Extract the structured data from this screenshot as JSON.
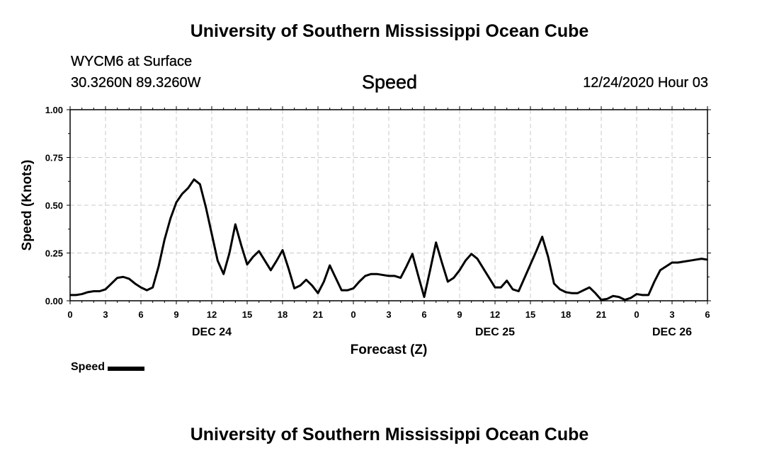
{
  "header": {
    "top_title": "University of Southern Mississippi Ocean Cube",
    "station": "WYCM6 at Surface",
    "coords": "30.3260N 89.3260W",
    "variable": "Speed",
    "date": "12/24/2020 Hour 03",
    "bottom_title": "University of Southern Mississippi Ocean Cube"
  },
  "legend": {
    "label": "Speed",
    "color": "#000000"
  },
  "chart_data": {
    "type": "line",
    "title": "Speed",
    "xlabel": "Forecast (Z)",
    "ylabel": "Speed (Knots)",
    "xlim": [
      0,
      54
    ],
    "ylim": [
      0,
      1
    ],
    "grid": true,
    "y_ticks": [
      "0.00",
      "0.25",
      "0.50",
      "0.75",
      "1.00"
    ],
    "x_ticks": [
      "0",
      "3",
      "6",
      "9",
      "12",
      "15",
      "18",
      "21",
      "0",
      "3",
      "6",
      "9",
      "12",
      "15",
      "18",
      "21",
      "0",
      "3",
      "6"
    ],
    "day_labels": [
      {
        "label": "DEC 24",
        "hour": 12
      },
      {
        "label": "DEC 25",
        "hour": 36
      },
      {
        "label": "DEC 26",
        "hour": 51
      }
    ],
    "series": [
      {
        "name": "Speed",
        "color": "#000000",
        "x": [
          0,
          0.5,
          1,
          1.5,
          2,
          2.5,
          3,
          3.5,
          4,
          4.5,
          5,
          5.5,
          6,
          6.5,
          7,
          7.5,
          8,
          8.5,
          9,
          9.5,
          10,
          10.5,
          11,
          11.5,
          12,
          12.5,
          13,
          13.5,
          14,
          14.5,
          15,
          15.5,
          16,
          16.5,
          17,
          17.5,
          18,
          18.5,
          19,
          19.5,
          20,
          20.5,
          21,
          21.5,
          22,
          22.5,
          23,
          23.5,
          24,
          24.5,
          25,
          25.5,
          26,
          26.5,
          27,
          27.5,
          28,
          28.5,
          29,
          29.5,
          30,
          30.5,
          31,
          31.5,
          32,
          32.5,
          33,
          33.5,
          34,
          34.5,
          35,
          35.5,
          36,
          36.5,
          37,
          37.5,
          38,
          38.5,
          39,
          39.5,
          40,
          40.5,
          41,
          41.5,
          42,
          42.5,
          43,
          43.5,
          44,
          44.5,
          45,
          45.5,
          46,
          46.5,
          47,
          47.5,
          48,
          48.5,
          49,
          49.5,
          50,
          50.5,
          51,
          51.5,
          52,
          52.5,
          53,
          53.5,
          54
        ],
        "values": [
          0.03,
          0.03,
          0.035,
          0.045,
          0.05,
          0.05,
          0.06,
          0.09,
          0.12,
          0.125,
          0.115,
          0.09,
          0.07,
          0.055,
          0.07,
          0.18,
          0.32,
          0.43,
          0.515,
          0.56,
          0.59,
          0.635,
          0.61,
          0.49,
          0.35,
          0.21,
          0.14,
          0.25,
          0.4,
          0.29,
          0.19,
          0.23,
          0.26,
          0.21,
          0.16,
          0.21,
          0.265,
          0.17,
          0.065,
          0.08,
          0.11,
          0.08,
          0.04,
          0.1,
          0.185,
          0.12,
          0.055,
          0.055,
          0.065,
          0.1,
          0.13,
          0.14,
          0.14,
          0.135,
          0.13,
          0.13,
          0.12,
          0.18,
          0.245,
          0.13,
          0.02,
          0.16,
          0.305,
          0.2,
          0.1,
          0.12,
          0.16,
          0.21,
          0.245,
          0.22,
          0.17,
          0.12,
          0.07,
          0.07,
          0.105,
          0.06,
          0.05,
          0.12,
          0.19,
          0.26,
          0.335,
          0.23,
          0.09,
          0.06,
          0.045,
          0.04,
          0.04,
          0.055,
          0.07,
          0.04,
          0.005,
          0.01,
          0.025,
          0.02,
          0.005,
          0.015,
          0.035,
          0.03,
          0.03,
          0.1,
          0.16,
          0.18,
          0.2,
          0.2,
          0.205,
          0.21,
          0.215,
          0.22,
          0.215
        ]
      }
    ]
  }
}
